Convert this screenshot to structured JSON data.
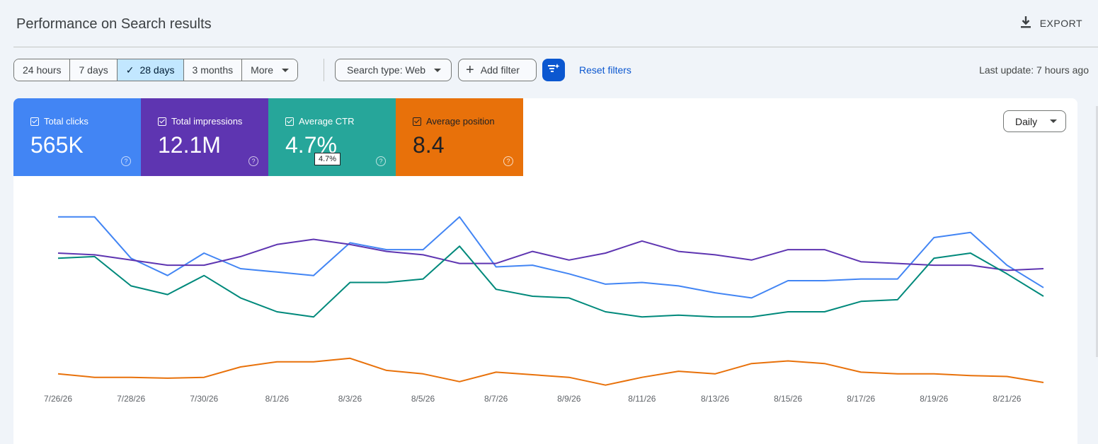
{
  "header": {
    "title": "Performance on Search results",
    "export_label": "EXPORT"
  },
  "toolbar": {
    "ranges": [
      "24 hours",
      "7 days",
      "28 days",
      "3 months",
      "More"
    ],
    "selected_range": "28 days",
    "search_type": "Search type: Web",
    "add_filter": "Add filter",
    "reset_filters": "Reset filters",
    "last_update": "Last update: 7 hours ago"
  },
  "metrics": [
    {
      "label": "Total clicks",
      "value": "565K",
      "color": "#4285f4"
    },
    {
      "label": "Total impressions",
      "value": "12.1M",
      "color": "#5e35b1"
    },
    {
      "label": "Average CTR",
      "value": "4.7%",
      "color": "#26a69a"
    },
    {
      "label": "Average position",
      "value": "8.4",
      "color": "#e8710a"
    }
  ],
  "tooltip": "4.7%",
  "granularity": "Daily",
  "chart_data": {
    "type": "line",
    "x": [
      "7/26/26",
      "7/27/26",
      "7/28/26",
      "7/29/26",
      "7/30/26",
      "7/31/26",
      "8/1/26",
      "8/2/26",
      "8/3/26",
      "8/4/26",
      "8/5/26",
      "8/6/26",
      "8/7/26",
      "8/8/26",
      "8/9/26",
      "8/10/26",
      "8/11/26",
      "8/12/26",
      "8/13/26",
      "8/14/26",
      "8/15/26",
      "8/16/26",
      "8/17/26",
      "8/18/26",
      "8/19/26",
      "8/20/26",
      "8/21/26",
      "8/22/26"
    ],
    "tick_labels": [
      "7/26/26",
      "7/28/26",
      "7/30/26",
      "8/1/26",
      "8/3/26",
      "8/5/26",
      "8/7/26",
      "8/9/26",
      "8/11/26",
      "8/13/26",
      "8/15/26",
      "8/17/26",
      "8/19/26",
      "8/21/26"
    ],
    "normalized_range": [
      0,
      100
    ],
    "series": [
      {
        "name": "Total clicks",
        "color": "#4285f4",
        "values": [
          96,
          96,
          72,
          62,
          75,
          66,
          64,
          62,
          81,
          77,
          77,
          96,
          67,
          68,
          63,
          57,
          58,
          56,
          52,
          49,
          59,
          59,
          60,
          60,
          84,
          87,
          68,
          55
        ]
      },
      {
        "name": "Total impressions",
        "color": "#5e35b1",
        "values": [
          75,
          74,
          71,
          68,
          68,
          73,
          80,
          83,
          80,
          76,
          74,
          69,
          69,
          76,
          71,
          75,
          82,
          76,
          74,
          71,
          77,
          77,
          70,
          69,
          68,
          68,
          65,
          66
        ]
      },
      {
        "name": "Average CTR",
        "color": "#00897b",
        "values": [
          72,
          73,
          56,
          51,
          62,
          49,
          41,
          38,
          58,
          58,
          60,
          79,
          54,
          50,
          49,
          41,
          38,
          39,
          38,
          38,
          41,
          41,
          47,
          48,
          72,
          75,
          63,
          50
        ]
      },
      {
        "name": "Average position",
        "color": "#e8710a",
        "values": [
          5,
          3,
          3,
          2.5,
          3,
          9,
          12,
          12,
          14,
          7,
          5,
          0.5,
          6,
          4.5,
          3,
          -1.5,
          3,
          6.5,
          5,
          11,
          12.5,
          11,
          6,
          5,
          5,
          4,
          3.5,
          0
        ]
      }
    ]
  }
}
